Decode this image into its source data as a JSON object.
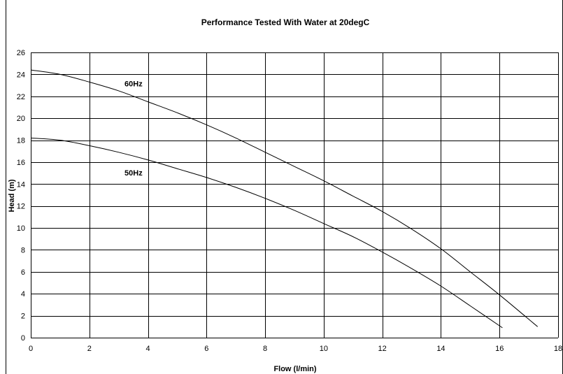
{
  "chart_data": {
    "type": "line",
    "title": "Performance Tested With Water at 20degC",
    "xlabel": "Flow (l/min)",
    "ylabel": "Head (m)",
    "xlim": [
      0,
      18
    ],
    "ylim": [
      0,
      26
    ],
    "x_ticks": [
      "0",
      "2",
      "4",
      "6",
      "8",
      "10",
      "12",
      "14",
      "16",
      "18"
    ],
    "y_ticks": [
      "0",
      "2",
      "4",
      "6",
      "8",
      "10",
      "12",
      "14",
      "16",
      "18",
      "20",
      "22",
      "24",
      "26"
    ],
    "grid": true,
    "legend": "none",
    "series": [
      {
        "name": "60Hz",
        "color": "#000000",
        "x": [
          0,
          1,
          2,
          3,
          4,
          5,
          6,
          7,
          8,
          9,
          10,
          11,
          12,
          13,
          14,
          15,
          16,
          17.3
        ],
        "y": [
          24.4,
          24.0,
          23.3,
          22.5,
          21.5,
          20.5,
          19.4,
          18.2,
          16.9,
          15.6,
          14.3,
          12.9,
          11.5,
          9.9,
          8.1,
          6.0,
          3.9,
          1.0
        ]
      },
      {
        "name": "50Hz",
        "color": "#000000",
        "x": [
          0,
          1,
          2,
          3,
          4,
          5,
          6,
          7,
          8,
          9,
          10,
          11,
          12,
          13,
          14,
          15,
          16.1
        ],
        "y": [
          18.2,
          18.0,
          17.5,
          16.9,
          16.2,
          15.4,
          14.6,
          13.7,
          12.7,
          11.6,
          10.4,
          9.2,
          7.8,
          6.3,
          4.7,
          2.9,
          0.9
        ]
      }
    ]
  }
}
